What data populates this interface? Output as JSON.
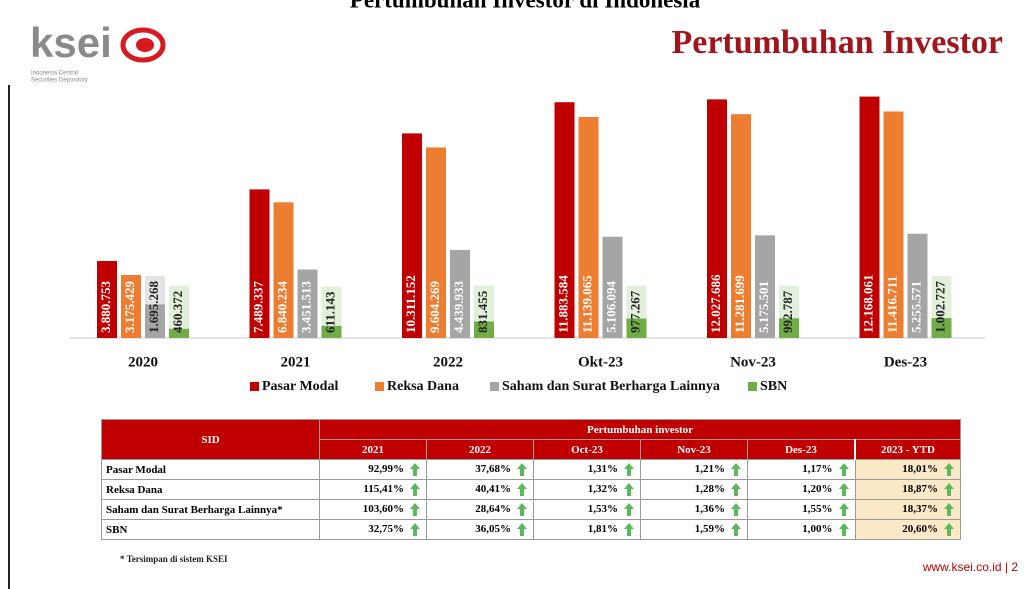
{
  "page_title": "Pertumbuhan Investor di Indonesia",
  "header": {
    "logo": "ksei",
    "logo_sub_1": "Indonesia Central",
    "logo_sub_2": "Securities Depository",
    "title": "Pertumbuhan Investor"
  },
  "chart_data": {
    "type": "bar",
    "categories": [
      "2020",
      "2021",
      "2022",
      "Okt-23",
      "Nov-23",
      "Des-23"
    ],
    "ylim": [
      0,
      12500000
    ],
    "legend": "bottom",
    "series": [
      {
        "name": "Pasar Modal",
        "color": "#c00000",
        "tint": "#f4d0d0",
        "values": [
          3880753,
          7489337,
          10311152,
          11883584,
          12027686,
          12168061
        ],
        "value_labels": [
          "3.880.753",
          "7.489.337",
          "10.311.152",
          "11.883.584",
          "12.027.686",
          "12.168.061"
        ]
      },
      {
        "name": "Reksa Dana",
        "color": "#ed7d31",
        "tint": "#fbe2d2",
        "values": [
          3175429,
          6840234,
          9604269,
          11139065,
          11281699,
          11416711
        ],
        "value_labels": [
          "3.175.429",
          "6.840.234",
          "9.604.269",
          "11.139.065",
          "11.281.699",
          "11.416.711"
        ]
      },
      {
        "name": "Saham dan Surat Berharga Lainnya",
        "color": "#a5a5a5",
        "tint": "#e4e4e4",
        "values": [
          1695268,
          3451513,
          4439933,
          5106094,
          5175501,
          5255571
        ],
        "value_labels": [
          "1.695.268",
          "3.451.513",
          "4.439.933",
          "5.106.094",
          "5.175.501",
          "5.255.571"
        ]
      },
      {
        "name": "SBN",
        "color": "#70ad47",
        "tint": "#e2efda",
        "values": [
          460372,
          611143,
          831455,
          977267,
          992787,
          1002727
        ],
        "value_labels": [
          "460.372",
          "611.143",
          "831.455",
          "977.267",
          "992.787",
          "1.002.727"
        ]
      }
    ]
  },
  "table": {
    "corner": "SID",
    "group": "Pertumbuhan investor",
    "columns": [
      "2021",
      "2022",
      "Oct-23",
      "Nov-23",
      "Des-23",
      "2023 - YTD"
    ],
    "rows": [
      [
        "Pasar Modal",
        "92,99%",
        "37,68%",
        "1,31%",
        "1,21%",
        "1,17%",
        "18,01%"
      ],
      [
        "Reksa Dana",
        "115,41%",
        "40,41%",
        "1,32%",
        "1,28%",
        "1,20%",
        "18,87%"
      ],
      [
        "Saham dan Surat Berharga Lainnya*",
        "103,60%",
        "28,64%",
        "1,53%",
        "1,36%",
        "1,55%",
        "18,37%"
      ],
      [
        "SBN",
        "32,75%",
        "36,05%",
        "1,81%",
        "1,59%",
        "1,00%",
        "20,60%"
      ]
    ]
  },
  "footnote": "* Tersimpan di sistem KSEI",
  "footer": "www.ksei.co.id |  2"
}
